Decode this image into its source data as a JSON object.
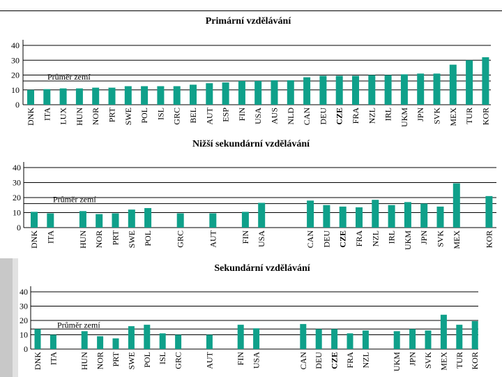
{
  "colors": {
    "bar": "#0fa08a",
    "avg_line": "#000000",
    "grid": "#000000"
  },
  "avg_label": "Průměr zemí",
  "chart_data": [
    {
      "type": "bar",
      "title": "Primární vzdělávání",
      "xlabel": "",
      "ylabel": "",
      "ylim": [
        0,
        40
      ],
      "yticks": [
        0,
        10,
        20,
        30,
        40
      ],
      "grid": true,
      "average": 16,
      "average_label": "Průměr zemí",
      "bold_category": "CZE",
      "categories": [
        "DNK",
        "ITA",
        "LUX",
        "HUN",
        "NOR",
        "PRT",
        "SWE",
        "POL",
        "ISL",
        "GRC",
        "BEL",
        "AUT",
        "ESP",
        "FIN",
        "USA",
        "AUS",
        "NLD",
        "CAN",
        "DEU",
        "CZE",
        "FRA",
        "NZL",
        "IRL",
        "UKM",
        "JPN",
        "SVK",
        "MEX",
        "TUR",
        "KOR"
      ],
      "values": [
        10,
        10.5,
        11,
        11,
        11.5,
        11.5,
        12.5,
        12.5,
        12.5,
        12.5,
        13.5,
        14.5,
        15,
        16,
        16,
        16.5,
        16.5,
        18.5,
        19.5,
        19.5,
        19.5,
        20,
        20,
        20.5,
        21,
        21,
        27,
        30,
        32
      ]
    },
    {
      "type": "bar",
      "title": "Nižší sekundární vzdělávání",
      "xlabel": "",
      "ylabel": "",
      "ylim": [
        0,
        40
      ],
      "yticks": [
        0,
        10,
        20,
        30,
        40
      ],
      "grid": true,
      "average": 16,
      "average_label": "Průměr zemí",
      "bold_category": "CZE",
      "categories": [
        "DNK",
        "ITA",
        "",
        "HUN",
        "NOR",
        "PRT",
        "SWE",
        "POL",
        "",
        "GRC",
        "",
        "AUT",
        "",
        "FIN",
        "USA",
        "",
        "",
        "CAN",
        "DEU",
        "CZE",
        "FRA",
        "NZL",
        "IRL",
        "UKM",
        "JPN",
        "SVK",
        "MEX",
        "",
        "KOR"
      ],
      "values": [
        10.5,
        9.5,
        null,
        11,
        9,
        9.5,
        12,
        13,
        null,
        9.5,
        null,
        9.5,
        null,
        10.5,
        16.5,
        null,
        null,
        18,
        15,
        14,
        13.5,
        18.5,
        15,
        17,
        16,
        14,
        29.5,
        null,
        21
      ]
    },
    {
      "type": "bar",
      "title": "Sekundární vzdělávání",
      "xlabel": "",
      "ylabel": "",
      "ylim": [
        0,
        40
      ],
      "yticks": [
        0,
        10,
        20,
        30,
        40
      ],
      "grid": true,
      "average": 14,
      "average_label": "Průměr zemí",
      "bold_category": "CZE",
      "categories": [
        "DNK",
        "ITA",
        "",
        "HUN",
        "NOR",
        "PRT",
        "SWE",
        "POL",
        "ISL",
        "GRC",
        "",
        "AUT",
        "",
        "FIN",
        "USA",
        "",
        "",
        "CAN",
        "DEU",
        "CZE",
        "FRA",
        "NZL",
        "",
        "UKM",
        "JPN",
        "SVK",
        "MEX",
        "TUR",
        "KOR"
      ],
      "values": [
        14,
        10,
        null,
        12.5,
        9,
        7.5,
        16,
        17,
        11,
        10,
        null,
        10,
        null,
        17,
        14.5,
        null,
        null,
        17.5,
        14,
        14,
        11,
        13,
        null,
        12.5,
        14,
        13,
        24,
        17,
        19.5
      ]
    }
  ]
}
